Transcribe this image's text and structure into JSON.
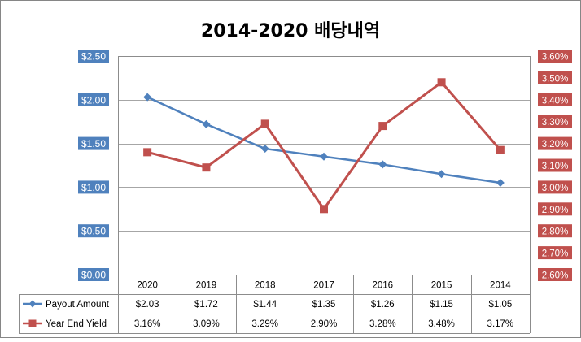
{
  "chart_data": {
    "type": "line",
    "title": "2014-2020 배당내역",
    "categories": [
      "2020",
      "2019",
      "2018",
      "2017",
      "2016",
      "2015",
      "2014"
    ],
    "series": [
      {
        "name": "Payout Amount",
        "axis": "left",
        "color": "#4f81bd",
        "marker": "diamond",
        "values": [
          2.03,
          1.72,
          1.44,
          1.35,
          1.26,
          1.15,
          1.05
        ],
        "labels": [
          "$2.03",
          "$1.72",
          "$1.44",
          "$1.35",
          "$1.26",
          "$1.15",
          "$1.05"
        ]
      },
      {
        "name": "Year End Yield",
        "axis": "right",
        "color": "#c0504d",
        "marker": "square",
        "values": [
          3.16,
          3.09,
          3.29,
          2.9,
          3.28,
          3.48,
          3.17
        ],
        "labels": [
          "3.16%",
          "3.09%",
          "3.29%",
          "2.90%",
          "3.28%",
          "3.48%",
          "3.17%"
        ]
      }
    ],
    "y_left": {
      "min": 0,
      "max": 2.5,
      "ticks": [
        2.5,
        2.0,
        1.5,
        1.0,
        0.5,
        0.0
      ],
      "tick_labels": [
        "$2.50",
        "$2.00",
        "$1.50",
        "$1.00",
        "$0.50",
        "$0.00"
      ],
      "label_bg": "#4f81bd"
    },
    "y_right": {
      "min": 2.6,
      "max": 3.6,
      "ticks": [
        3.6,
        3.5,
        3.4,
        3.3,
        3.2,
        3.1,
        3.0,
        2.9,
        2.8,
        2.7,
        2.6
      ],
      "tick_labels": [
        "3.60%",
        "3.50%",
        "3.40%",
        "3.30%",
        "3.20%",
        "3.10%",
        "3.00%",
        "2.90%",
        "2.80%",
        "2.70%",
        "2.60%"
      ],
      "label_bg": "#c0504d"
    },
    "grid": true,
    "legend": "data-table"
  }
}
